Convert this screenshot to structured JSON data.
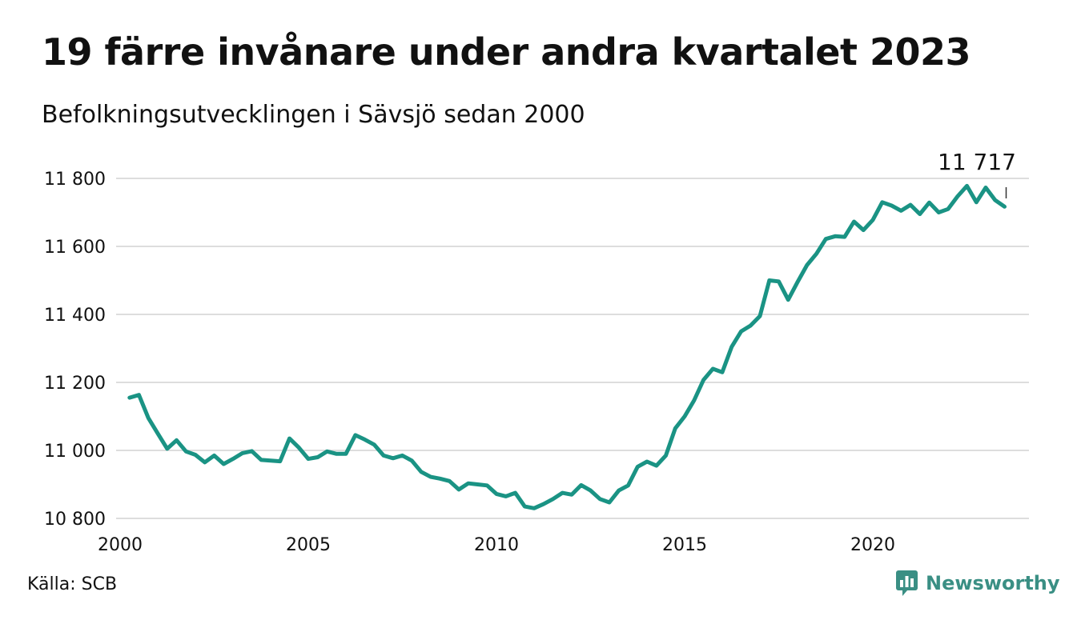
{
  "title": "19 färre invånare under andra kvartalet 2023",
  "subtitle": "Befolkningsutvecklingen i Sävsjö sedan 2000",
  "source": "Källa: SCB",
  "brand": "Newsworthy",
  "colors": {
    "line": "#1a9384",
    "grid": "#dddddd",
    "text": "#111111",
    "brand": "#3a8f84"
  },
  "chart_data": {
    "type": "line",
    "title": "19 färre invånare under andra kvartalet 2023",
    "xlabel": "",
    "ylabel": "",
    "xlim": [
      2000,
      2023.5
    ],
    "ylim": [
      10800,
      11800
    ],
    "yticks": [
      10800,
      11000,
      11200,
      11400,
      11600,
      11800
    ],
    "ytick_labels": [
      "10 800",
      "11 000",
      "11 200",
      "11 400",
      "11 600",
      "11 800"
    ],
    "xticks": [
      2000,
      2005,
      2010,
      2015,
      2020
    ],
    "xtick_labels": [
      "2000",
      "2005",
      "2010",
      "2015",
      "2020"
    ],
    "grid": true,
    "end_label": "11 717",
    "series": [
      {
        "values": [
          [
            2000.25,
            11155
          ],
          [
            2000.5,
            11163
          ],
          [
            2000.75,
            11095
          ],
          [
            2001.0,
            11050
          ],
          [
            2001.25,
            11005
          ],
          [
            2001.5,
            11030
          ],
          [
            2001.75,
            10997
          ],
          [
            2002.0,
            10987
          ],
          [
            2002.25,
            10965
          ],
          [
            2002.5,
            10985
          ],
          [
            2002.75,
            10960
          ],
          [
            2003.0,
            10975
          ],
          [
            2003.25,
            10992
          ],
          [
            2003.5,
            10998
          ],
          [
            2003.75,
            10972
          ],
          [
            2004.0,
            10970
          ],
          [
            2004.25,
            10968
          ],
          [
            2004.5,
            11035
          ],
          [
            2004.75,
            11008
          ],
          [
            2005.0,
            10975
          ],
          [
            2005.25,
            10980
          ],
          [
            2005.5,
            10997
          ],
          [
            2005.75,
            10990
          ],
          [
            2006.0,
            10990
          ],
          [
            2006.25,
            11045
          ],
          [
            2006.5,
            11032
          ],
          [
            2006.75,
            11017
          ],
          [
            2007.0,
            10985
          ],
          [
            2007.25,
            10977
          ],
          [
            2007.5,
            10985
          ],
          [
            2007.75,
            10970
          ],
          [
            2008.0,
            10937
          ],
          [
            2008.25,
            10922
          ],
          [
            2008.5,
            10917
          ],
          [
            2008.75,
            10910
          ],
          [
            2009.0,
            10885
          ],
          [
            2009.25,
            10903
          ],
          [
            2009.5,
            10900
          ],
          [
            2009.75,
            10897
          ],
          [
            2010.0,
            10872
          ],
          [
            2010.25,
            10865
          ],
          [
            2010.5,
            10875
          ],
          [
            2010.75,
            10835
          ],
          [
            2011.0,
            10830
          ],
          [
            2011.25,
            10842
          ],
          [
            2011.5,
            10857
          ],
          [
            2011.75,
            10875
          ],
          [
            2012.0,
            10870
          ],
          [
            2012.25,
            10898
          ],
          [
            2012.5,
            10882
          ],
          [
            2012.75,
            10857
          ],
          [
            2013.0,
            10847
          ],
          [
            2013.25,
            10882
          ],
          [
            2013.5,
            10897
          ],
          [
            2013.75,
            10952
          ],
          [
            2014.0,
            10967
          ],
          [
            2014.25,
            10955
          ],
          [
            2014.5,
            10985
          ],
          [
            2014.75,
            11065
          ],
          [
            2015.0,
            11100
          ],
          [
            2015.25,
            11147
          ],
          [
            2015.5,
            11207
          ],
          [
            2015.75,
            11240
          ],
          [
            2016.0,
            11230
          ],
          [
            2016.25,
            11305
          ],
          [
            2016.5,
            11350
          ],
          [
            2016.75,
            11367
          ],
          [
            2017.0,
            11395
          ],
          [
            2017.25,
            11500
          ],
          [
            2017.5,
            11497
          ],
          [
            2017.75,
            11443
          ],
          [
            2018.0,
            11495
          ],
          [
            2018.25,
            11545
          ],
          [
            2018.5,
            11578
          ],
          [
            2018.75,
            11622
          ],
          [
            2019.0,
            11630
          ],
          [
            2019.25,
            11628
          ],
          [
            2019.5,
            11673
          ],
          [
            2019.75,
            11648
          ],
          [
            2020.0,
            11678
          ],
          [
            2020.25,
            11730
          ],
          [
            2020.5,
            11720
          ],
          [
            2020.75,
            11705
          ],
          [
            2021.0,
            11722
          ],
          [
            2021.25,
            11695
          ],
          [
            2021.5,
            11729
          ],
          [
            2021.75,
            11700
          ],
          [
            2022.0,
            11710
          ],
          [
            2022.25,
            11747
          ],
          [
            2022.5,
            11778
          ],
          [
            2022.75,
            11730
          ],
          [
            2023.0,
            11773
          ],
          [
            2023.25,
            11736
          ],
          [
            2023.5,
            11717
          ]
        ]
      }
    ]
  }
}
